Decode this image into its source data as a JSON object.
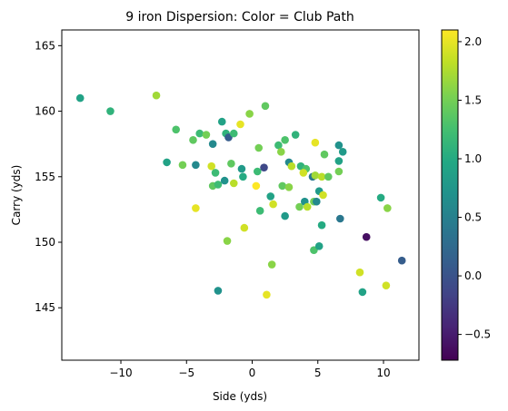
{
  "chart_data": {
    "type": "scatter",
    "title": "9 iron Dispersion: Color = Club Path",
    "xlabel": "Side (yds)",
    "ylabel": "Carry (yds)",
    "xlim": [
      -14.5,
      12.7
    ],
    "ylim": [
      141,
      166.2
    ],
    "xticks": [
      -10,
      -5,
      0,
      5,
      10
    ],
    "xtick_labels": [
      "−10",
      "−5",
      "0",
      "5",
      "10"
    ],
    "yticks": [
      145,
      150,
      155,
      160,
      165
    ],
    "ytick_labels": [
      "145",
      "150",
      "155",
      "160",
      "165"
    ],
    "grid": false,
    "colorbar": {
      "cmap": "viridis",
      "range": [
        -0.72,
        2.1
      ],
      "ticks": [
        -0.5,
        0.0,
        0.5,
        1.0,
        1.5,
        2.0
      ],
      "tick_labels": [
        "−0.5",
        "0.0",
        "0.5",
        "1.0",
        "1.5",
        "2.0"
      ]
    },
    "points": [
      {
        "x": -13.1,
        "y": 161.0,
        "c": 0.9
      },
      {
        "x": -10.8,
        "y": 160.0,
        "c": 1.1
      },
      {
        "x": -7.3,
        "y": 161.2,
        "c": 1.7
      },
      {
        "x": -5.8,
        "y": 158.6,
        "c": 1.3
      },
      {
        "x": -4.5,
        "y": 157.8,
        "c": 1.4
      },
      {
        "x": -4.0,
        "y": 158.3,
        "c": 1.2
      },
      {
        "x": -3.5,
        "y": 158.2,
        "c": 1.5
      },
      {
        "x": -3.0,
        "y": 157.5,
        "c": 0.6
      },
      {
        "x": -2.3,
        "y": 159.2,
        "c": 0.9
      },
      {
        "x": -2.0,
        "y": 158.3,
        "c": 1.1
      },
      {
        "x": -1.8,
        "y": 158.0,
        "c": 0.1
      },
      {
        "x": -1.4,
        "y": 158.3,
        "c": 1.2
      },
      {
        "x": -0.9,
        "y": 159.0,
        "c": 2.0
      },
      {
        "x": -0.2,
        "y": 159.8,
        "c": 1.6
      },
      {
        "x": 1.0,
        "y": 160.4,
        "c": 1.4
      },
      {
        "x": -6.5,
        "y": 156.1,
        "c": 0.9
      },
      {
        "x": -5.3,
        "y": 155.9,
        "c": 1.5
      },
      {
        "x": -4.3,
        "y": 155.9,
        "c": 0.6
      },
      {
        "x": -3.1,
        "y": 155.8,
        "c": 1.9
      },
      {
        "x": -2.8,
        "y": 155.3,
        "c": 1.2
      },
      {
        "x": -1.6,
        "y": 156.0,
        "c": 1.4
      },
      {
        "x": -0.8,
        "y": 155.6,
        "c": 0.8
      },
      {
        "x": 0.5,
        "y": 157.2,
        "c": 1.5
      },
      {
        "x": 0.9,
        "y": 155.7,
        "c": -0.1
      },
      {
        "x": 2.0,
        "y": 157.4,
        "c": 1.2
      },
      {
        "x": 2.2,
        "y": 156.9,
        "c": 1.6
      },
      {
        "x": 2.5,
        "y": 157.8,
        "c": 1.3
      },
      {
        "x": 3.3,
        "y": 158.2,
        "c": 1.1
      },
      {
        "x": 2.8,
        "y": 156.1,
        "c": 0.6
      },
      {
        "x": 3.0,
        "y": 155.8,
        "c": 1.8
      },
      {
        "x": 4.8,
        "y": 157.6,
        "c": 2.0
      },
      {
        "x": 5.5,
        "y": 156.7,
        "c": 1.4
      },
      {
        "x": 6.6,
        "y": 157.4,
        "c": 0.7
      },
      {
        "x": 6.9,
        "y": 156.9,
        "c": 0.8
      },
      {
        "x": 6.6,
        "y": 156.2,
        "c": 0.9
      },
      {
        "x": 6.6,
        "y": 155.4,
        "c": 1.5
      },
      {
        "x": -3.0,
        "y": 154.3,
        "c": 1.4
      },
      {
        "x": -2.6,
        "y": 154.4,
        "c": 1.2
      },
      {
        "x": -2.1,
        "y": 154.7,
        "c": 0.7
      },
      {
        "x": -1.4,
        "y": 154.5,
        "c": 1.8
      },
      {
        "x": -0.7,
        "y": 155.0,
        "c": 1.0
      },
      {
        "x": 0.3,
        "y": 154.3,
        "c": 2.1
      },
      {
        "x": 0.4,
        "y": 155.4,
        "c": 1.2
      },
      {
        "x": 3.7,
        "y": 155.8,
        "c": 1.1
      },
      {
        "x": 4.1,
        "y": 155.6,
        "c": 1.3
      },
      {
        "x": 3.9,
        "y": 155.3,
        "c": 1.9
      },
      {
        "x": 4.6,
        "y": 155.0,
        "c": 0.4
      },
      {
        "x": 4.8,
        "y": 155.1,
        "c": 1.7
      },
      {
        "x": 5.3,
        "y": 155.0,
        "c": 1.8
      },
      {
        "x": 5.8,
        "y": 155.0,
        "c": 1.4
      },
      {
        "x": -4.3,
        "y": 152.6,
        "c": 2.0
      },
      {
        "x": 0.6,
        "y": 152.4,
        "c": 1.2
      },
      {
        "x": 1.4,
        "y": 153.5,
        "c": 0.9
      },
      {
        "x": 1.6,
        "y": 152.9,
        "c": 1.9
      },
      {
        "x": 2.3,
        "y": 154.3,
        "c": 1.4
      },
      {
        "x": 2.8,
        "y": 154.2,
        "c": 1.6
      },
      {
        "x": 2.5,
        "y": 152.0,
        "c": 0.8
      },
      {
        "x": 3.6,
        "y": 152.7,
        "c": 1.5
      },
      {
        "x": 4.0,
        "y": 153.1,
        "c": 0.7
      },
      {
        "x": 4.2,
        "y": 152.7,
        "c": 1.8
      },
      {
        "x": 4.7,
        "y": 153.1,
        "c": 1.5
      },
      {
        "x": 4.9,
        "y": 153.1,
        "c": 0.6
      },
      {
        "x": 5.1,
        "y": 153.9,
        "c": 0.8
      },
      {
        "x": 5.4,
        "y": 153.6,
        "c": 1.9
      },
      {
        "x": 5.3,
        "y": 151.3,
        "c": 1.0
      },
      {
        "x": 6.7,
        "y": 151.8,
        "c": 0.4
      },
      {
        "x": 9.8,
        "y": 153.4,
        "c": 1.0
      },
      {
        "x": 10.3,
        "y": 152.6,
        "c": 1.6
      },
      {
        "x": -1.9,
        "y": 150.1,
        "c": 1.6
      },
      {
        "x": -0.6,
        "y": 151.1,
        "c": 1.9
      },
      {
        "x": 4.7,
        "y": 149.4,
        "c": 1.3
      },
      {
        "x": 5.1,
        "y": 149.7,
        "c": 0.9
      },
      {
        "x": 8.7,
        "y": 150.4,
        "c": -0.6
      },
      {
        "x": 1.5,
        "y": 148.3,
        "c": 1.6
      },
      {
        "x": 8.2,
        "y": 147.7,
        "c": 1.9
      },
      {
        "x": 11.4,
        "y": 148.6,
        "c": 0.1
      },
      {
        "x": -2.6,
        "y": 146.3,
        "c": 0.7
      },
      {
        "x": 1.1,
        "y": 146.0,
        "c": 2.0
      },
      {
        "x": 8.4,
        "y": 146.2,
        "c": 0.9
      },
      {
        "x": 10.2,
        "y": 146.7,
        "c": 1.9
      }
    ]
  }
}
